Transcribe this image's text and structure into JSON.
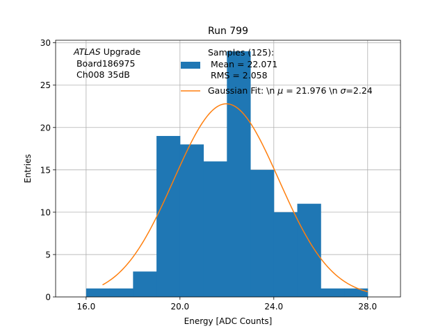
{
  "chart_data": {
    "type": "bar",
    "title": "Run 799",
    "xlabel": "Energy [ADC Counts]",
    "ylabel": "Entries",
    "xlim": [
      14.7,
      29.4
    ],
    "ylim": [
      0,
      30.3
    ],
    "grid": true,
    "x_ticks": [
      16.0,
      20.0,
      24.0,
      28.0
    ],
    "x_tick_labels": [
      "16.0",
      "20.0",
      "24.0",
      "28.0"
    ],
    "y_ticks": [
      0,
      5,
      10,
      15,
      20,
      25,
      30
    ],
    "y_tick_labels": [
      "0",
      "5",
      "10",
      "15",
      "20",
      "25",
      "30"
    ],
    "histogram": {
      "name": "Samples (125):",
      "color": "#1f77b4",
      "bin_edges": [
        16,
        17,
        18,
        19,
        20,
        21,
        22,
        23,
        24,
        25,
        26,
        27,
        28
      ],
      "counts": [
        1,
        1,
        3,
        19,
        18,
        16,
        29,
        15,
        10,
        11,
        1,
        1
      ]
    },
    "fit": {
      "name": "Gaussian Fit",
      "color": "#ff7f0e",
      "mu": 21.976,
      "sigma": 2.24,
      "amplitude": 22.8,
      "x_range": [
        16.7,
        28.0
      ]
    },
    "legend": {
      "placement": "top-right",
      "hist_lines": [
        "Samples (125):",
        " Mean = 22.071",
        " RMS = 2.058"
      ],
      "fit_label_parts": [
        "Gaussian Fit: \\n ",
        "μ",
        " = 21.976 \\n ",
        "σ",
        "=2.24"
      ]
    },
    "annotation": {
      "italic": "ATLAS",
      "rest": " Upgrade",
      "line2": " Board186975",
      "line3": " Ch008 35dB"
    }
  }
}
